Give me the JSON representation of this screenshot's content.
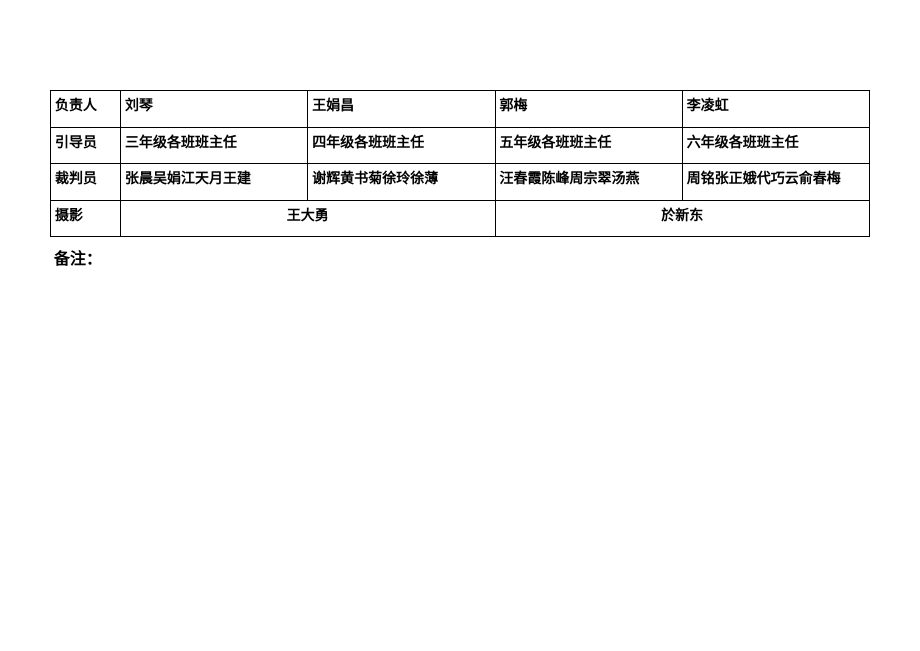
{
  "table": {
    "rows": [
      {
        "header": "负责人",
        "cells": [
          "刘琴",
          "王娟昌",
          "郭梅",
          "李凌虹"
        ]
      },
      {
        "header": "引导员",
        "cells": [
          "三年级各班班主任",
          "四年级各班班主任",
          "五年级各班班主任",
          "六年级各班班主任"
        ]
      },
      {
        "header": "裁判员",
        "cells": [
          "张晨吴娟江天月王建",
          "谢辉黄书菊徐玲徐薄",
          "汪春霞陈峰周宗翠汤燕",
          "周铭张正娥代巧云俞春梅"
        ]
      }
    ],
    "photography": {
      "header": "摄影",
      "left": "王大勇",
      "right": "於新东"
    }
  },
  "note_label": "备注：",
  "styles": {
    "border_color": "#000000",
    "background_color": "#ffffff",
    "font_size": 14,
    "header_col_width": 70
  }
}
